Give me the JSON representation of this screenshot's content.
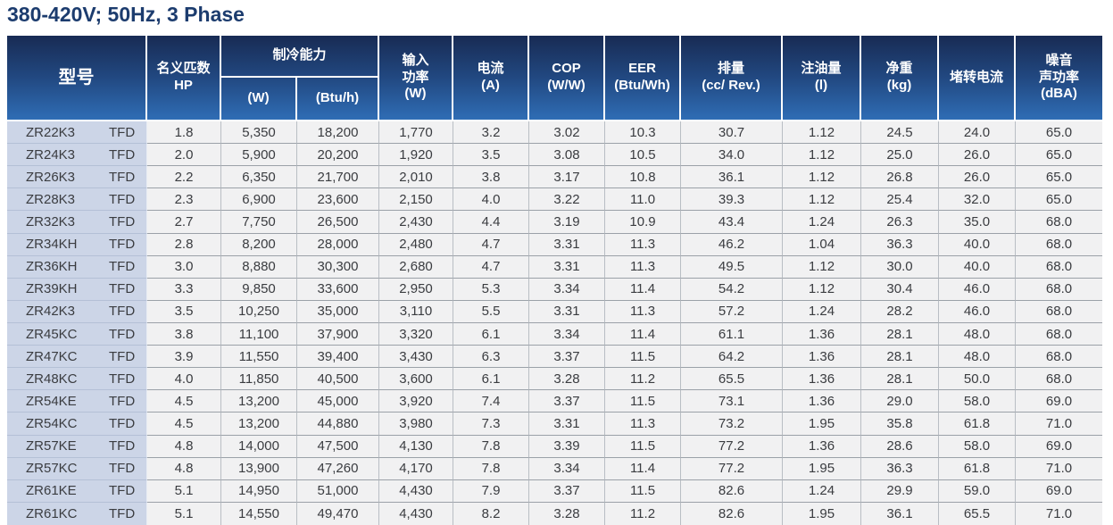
{
  "title": "380-420V; 50Hz, 3 Phase",
  "colors": {
    "title_text": "#1c3c6e",
    "header_gradient_top": "#182b54",
    "header_gradient_bottom": "#2f6db5",
    "header_text": "#ffffff",
    "model_column_bg": "#ccd5e7",
    "data_cell_bg": "#f1f1f2",
    "data_text": "#3a3c40"
  },
  "table": {
    "headers": {
      "model": "型号",
      "hp": "名义匹数\nHP",
      "cooling_group": "制冷能力",
      "cooling_w": "(W)",
      "cooling_btuh": "(Btu/h)",
      "input_power": "输入\n功率\n(W)",
      "current": "电流\n(A)",
      "cop": "COP\n(W/W)",
      "eer": "EER\n(Btu/Wh)",
      "displacement": "排量\n(cc/ Rev.)",
      "oil_charge": "注油量\n(l)",
      "net_weight": "净重\n(kg)",
      "locked_rotor_current": "堵转电流",
      "noise": "噪音\n声功率\n(dBA)"
    },
    "column_keys": [
      "model",
      "phase",
      "hp",
      "cooling_w",
      "cooling_btuh",
      "input_power_w",
      "current_a",
      "cop_ww",
      "eer_btuwh",
      "displacement_cc_rev",
      "oil_charge_l",
      "net_weight_kg",
      "locked_rotor_current",
      "sound_power_dba"
    ],
    "rows": [
      [
        "ZR22K3",
        "TFD",
        "1.8",
        "5,350",
        "18,200",
        "1,770",
        "3.2",
        "3.02",
        "10.3",
        "30.7",
        "1.12",
        "24.5",
        "24.0",
        "65.0"
      ],
      [
        "ZR24K3",
        "TFD",
        "2.0",
        "5,900",
        "20,200",
        "1,920",
        "3.5",
        "3.08",
        "10.5",
        "34.0",
        "1.12",
        "25.0",
        "26.0",
        "65.0"
      ],
      [
        "ZR26K3",
        "TFD",
        "2.2",
        "6,350",
        "21,700",
        "2,010",
        "3.8",
        "3.17",
        "10.8",
        "36.1",
        "1.12",
        "26.8",
        "26.0",
        "65.0"
      ],
      [
        "ZR28K3",
        "TFD",
        "2.3",
        "6,900",
        "23,600",
        "2,150",
        "4.0",
        "3.22",
        "11.0",
        "39.3",
        "1.12",
        "25.4",
        "32.0",
        "65.0"
      ],
      [
        "ZR32K3",
        "TFD",
        "2.7",
        "7,750",
        "26,500",
        "2,430",
        "4.4",
        "3.19",
        "10.9",
        "43.4",
        "1.24",
        "26.3",
        "35.0",
        "68.0"
      ],
      [
        "ZR34KH",
        "TFD",
        "2.8",
        "8,200",
        "28,000",
        "2,480",
        "4.7",
        "3.31",
        "11.3",
        "46.2",
        "1.04",
        "36.3",
        "40.0",
        "68.0"
      ],
      [
        "ZR36KH",
        "TFD",
        "3.0",
        "8,880",
        "30,300",
        "2,680",
        "4.7",
        "3.31",
        "11.3",
        "49.5",
        "1.12",
        "30.0",
        "40.0",
        "68.0"
      ],
      [
        "ZR39KH",
        "TFD",
        "3.3",
        "9,850",
        "33,600",
        "2,950",
        "5.3",
        "3.34",
        "11.4",
        "54.2",
        "1.12",
        "30.4",
        "46.0",
        "68.0"
      ],
      [
        "ZR42K3",
        "TFD",
        "3.5",
        "10,250",
        "35,000",
        "3,110",
        "5.5",
        "3.31",
        "11.3",
        "57.2",
        "1.24",
        "28.2",
        "46.0",
        "68.0"
      ],
      [
        "ZR45KC",
        "TFD",
        "3.8",
        "11,100",
        "37,900",
        "3,320",
        "6.1",
        "3.34",
        "11.4",
        "61.1",
        "1.36",
        "28.1",
        "48.0",
        "68.0"
      ],
      [
        "ZR47KC",
        "TFD",
        "3.9",
        "11,550",
        "39,400",
        "3,430",
        "6.3",
        "3.37",
        "11.5",
        "64.2",
        "1.36",
        "28.1",
        "48.0",
        "68.0"
      ],
      [
        "ZR48KC",
        "TFD",
        "4.0",
        "11,850",
        "40,500",
        "3,600",
        "6.1",
        "3.28",
        "11.2",
        "65.5",
        "1.36",
        "28.1",
        "50.0",
        "68.0"
      ],
      [
        "ZR54KE",
        "TFD",
        "4.5",
        "13,200",
        "45,000",
        "3,920",
        "7.4",
        "3.37",
        "11.5",
        "73.1",
        "1.36",
        "29.0",
        "58.0",
        "69.0"
      ],
      [
        "ZR54KC",
        "TFD",
        "4.5",
        "13,200",
        "44,880",
        "3,980",
        "7.3",
        "3.31",
        "11.3",
        "73.2",
        "1.95",
        "35.8",
        "61.8",
        "71.0"
      ],
      [
        "ZR57KE",
        "TFD",
        "4.8",
        "14,000",
        "47,500",
        "4,130",
        "7.8",
        "3.39",
        "11.5",
        "77.2",
        "1.36",
        "28.6",
        "58.0",
        "69.0"
      ],
      [
        "ZR57KC",
        "TFD",
        "4.8",
        "13,900",
        "47,260",
        "4,170",
        "7.8",
        "3.34",
        "11.4",
        "77.2",
        "1.95",
        "36.3",
        "61.8",
        "71.0"
      ],
      [
        "ZR61KE",
        "TFD",
        "5.1",
        "14,950",
        "51,000",
        "4,430",
        "7.9",
        "3.37",
        "11.5",
        "82.6",
        "1.24",
        "29.9",
        "59.0",
        "69.0"
      ],
      [
        "ZR61KC",
        "TFD",
        "5.1",
        "14,550",
        "49,470",
        "4,430",
        "8.2",
        "3.28",
        "11.2",
        "82.6",
        "1.95",
        "36.1",
        "65.5",
        "71.0"
      ]
    ]
  }
}
